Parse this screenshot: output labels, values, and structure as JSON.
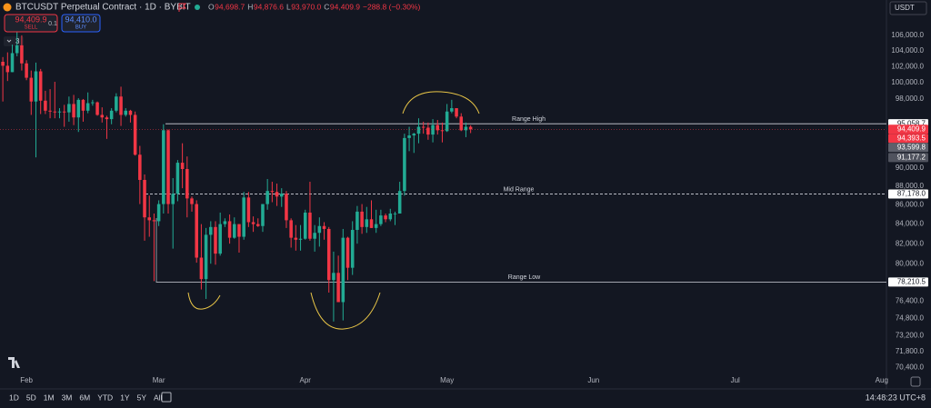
{
  "chart_data": {
    "type": "candlestick",
    "title": "BTCUSDT Perpetual Contract · 1D · BYBIT",
    "ohlc": [
      {
        "key": "O",
        "value": "94,698.7"
      },
      {
        "key": "H",
        "value": "94,876.6"
      },
      {
        "key": "L",
        "value": "93,970.0"
      },
      {
        "key": "C",
        "value": "94,409.9"
      }
    ],
    "change": "−288.8 (−0.30%)",
    "sell": {
      "price": "94,409.9",
      "label": "SELL"
    },
    "spread": "0.1",
    "buy": {
      "price": "94,410.0",
      "label": "BUY"
    },
    "indicators_badge": "3",
    "currency": "USDT",
    "log": true,
    "grid": false,
    "up_color": "#22ab94",
    "down_color": "#f23645",
    "xlim": [
      -0.6,
      187
    ],
    "xticks": [
      {
        "value": 5,
        "label": "Feb"
      },
      {
        "value": 33,
        "label": "Mar"
      },
      {
        "value": 64,
        "label": "Apr"
      },
      {
        "value": 94,
        "label": "May"
      },
      {
        "value": 125,
        "label": "Jun"
      },
      {
        "value": 155,
        "label": "Jul"
      },
      {
        "value": 186,
        "label": "Aug"
      }
    ],
    "ylim": [
      69800,
      107300
    ],
    "yticks": [
      {
        "value": 106000,
        "label": "106,000.0"
      },
      {
        "value": 104000,
        "label": "104,000.0"
      },
      {
        "value": 102000,
        "label": "102,000.0"
      },
      {
        "value": 100000,
        "label": "100,000.0"
      },
      {
        "value": 98000,
        "label": "98,000.0"
      },
      {
        "value": 90000,
        "label": "90,000.0"
      },
      {
        "value": 88000,
        "label": "88,000.0"
      },
      {
        "value": 86000,
        "label": "86,000.0"
      },
      {
        "value": 84000,
        "label": "84,000.0"
      },
      {
        "value": 82000,
        "label": "82,000.0"
      },
      {
        "value": 80000,
        "label": "80,000.0"
      },
      {
        "value": 76400,
        "label": "76,400.0"
      },
      {
        "value": 74800,
        "label": "74,800.0"
      },
      {
        "value": 73200,
        "label": "73,200.0"
      },
      {
        "value": 71800,
        "label": "71,800.0"
      },
      {
        "value": 70400,
        "label": "70,400.0"
      }
    ],
    "levels": [
      {
        "name": "Range High",
        "value": 95058.7,
        "label": "95,058.7",
        "dashed": false
      },
      {
        "name": "Mid Range",
        "value": 87178.0,
        "label": "87,178.0",
        "dashed": true
      },
      {
        "name": "Range Low",
        "value": 78210.5,
        "label": "78,210.5",
        "dashed": false
      }
    ],
    "price_labels": [
      {
        "value": 94409.9,
        "label": "94,409.9",
        "color": "#f23645"
      },
      {
        "value": 94393.5,
        "label": "94,393.5",
        "color": "#f23645"
      },
      {
        "value": 93599.8,
        "label": "93,599.8",
        "color": "#5d606b"
      },
      {
        "value": 91177.2,
        "label": "91,177.2",
        "color": "#50535e"
      }
    ],
    "candles": [
      [
        102600,
        103200,
        97700,
        102100
      ],
      [
        102100,
        103800,
        100200,
        101300
      ],
      [
        101300,
        104800,
        101300,
        103700
      ],
      [
        103700,
        106400,
        103300,
        104700
      ],
      [
        104700,
        106000,
        101500,
        102400
      ],
      [
        102400,
        102800,
        100300,
        100600
      ],
      [
        100600,
        101500,
        96100,
        97700
      ],
      [
        97700,
        102500,
        91200,
        101400
      ],
      [
        101400,
        101700,
        96200,
        97800
      ],
      [
        97800,
        99000,
        96200,
        96600
      ],
      [
        96600,
        99200,
        95700,
        96500
      ],
      [
        96500,
        100100,
        95700,
        96400
      ],
      [
        96400,
        96900,
        95700,
        96500
      ],
      [
        96500,
        97300,
        94700,
        96400
      ],
      [
        96400,
        98300,
        95300,
        97400
      ],
      [
        97400,
        98500,
        94900,
        95800
      ],
      [
        95800,
        98100,
        94100,
        97900
      ],
      [
        97900,
        98000,
        95300,
        96600
      ],
      [
        96600,
        98800,
        96300,
        97500
      ],
      [
        97500,
        97900,
        97200,
        97600
      ],
      [
        97600,
        97700,
        96000,
        96100
      ],
      [
        96100,
        97000,
        95200,
        95800
      ],
      [
        95800,
        96000,
        93300,
        95600
      ],
      [
        95600,
        96900,
        95000,
        96600
      ],
      [
        96600,
        98700,
        96400,
        98300
      ],
      [
        98300,
        99500,
        94800,
        96100
      ],
      [
        96100,
        96900,
        95900,
        96600
      ],
      [
        96600,
        96700,
        95200,
        96100
      ],
      [
        96100,
        96500,
        91400,
        91500
      ],
      [
        91500,
        92500,
        86100,
        88700
      ],
      [
        88700,
        89300,
        82300,
        84700
      ],
      [
        84700,
        87000,
        82700,
        84400
      ],
      [
        84400,
        85100,
        78300,
        84300
      ],
      [
        84300,
        86500,
        83800,
        86100
      ],
      [
        86100,
        95000,
        85100,
        94300
      ],
      [
        94300,
        94400,
        85100,
        86100
      ],
      [
        86100,
        88900,
        81500,
        87200
      ],
      [
        87200,
        90900,
        86400,
        90600
      ],
      [
        90600,
        92800,
        87800,
        89900
      ],
      [
        89900,
        91300,
        84700,
        86700
      ],
      [
        86700,
        86900,
        85300,
        86100
      ],
      [
        86100,
        86500,
        80100,
        80600
      ],
      [
        80600,
        84000,
        77500,
        78500
      ],
      [
        78500,
        83600,
        76600,
        82900
      ],
      [
        82900,
        84300,
        80000,
        83700
      ],
      [
        83700,
        84300,
        79900,
        81000
      ],
      [
        81000,
        85200,
        80800,
        84000
      ],
      [
        84000,
        84600,
        83700,
        84300
      ],
      [
        84300,
        85000,
        82000,
        82600
      ],
      [
        82600,
        84700,
        82500,
        84000
      ],
      [
        84000,
        84000,
        81100,
        82700
      ],
      [
        82700,
        87400,
        82400,
        86800
      ],
      [
        86800,
        87400,
        83700,
        84200
      ],
      [
        84200,
        84800,
        83200,
        84000
      ],
      [
        84000,
        84600,
        83700,
        83800
      ],
      [
        83800,
        86100,
        83200,
        86100
      ],
      [
        86100,
        88800,
        85500,
        87500
      ],
      [
        87500,
        88500,
        86300,
        87400
      ],
      [
        87400,
        88300,
        85900,
        86900
      ],
      [
        86900,
        87800,
        85800,
        87200
      ],
      [
        87200,
        87500,
        83600,
        84400
      ],
      [
        84400,
        84600,
        81600,
        82600
      ],
      [
        82600,
        83900,
        81300,
        82400
      ],
      [
        82400,
        83900,
        81300,
        82500
      ],
      [
        82500,
        85500,
        82400,
        85200
      ],
      [
        85200,
        88500,
        82300,
        82500
      ],
      [
        82500,
        83900,
        81200,
        83100
      ],
      [
        83100,
        84700,
        81700,
        83800
      ],
      [
        83800,
        84200,
        82400,
        83500
      ],
      [
        83500,
        83700,
        77200,
        78400
      ],
      [
        78400,
        81200,
        74500,
        79100
      ],
      [
        79100,
        80800,
        76300,
        76300
      ],
      [
        76300,
        83500,
        74600,
        82600
      ],
      [
        82600,
        82700,
        78400,
        79600
      ],
      [
        79600,
        84300,
        78900,
        83400
      ],
      [
        83400,
        85900,
        82000,
        85300
      ],
      [
        85300,
        86100,
        83000,
        83700
      ],
      [
        83700,
        85800,
        83100,
        84500
      ],
      [
        84500,
        86500,
        83600,
        83600
      ],
      [
        83600,
        85500,
        83100,
        84000
      ],
      [
        84000,
        85500,
        83800,
        84900
      ],
      [
        84900,
        85100,
        84200,
        84500
      ],
      [
        84500,
        85600,
        84300,
        85100
      ],
      [
        85100,
        85300,
        83900,
        85100
      ],
      [
        85100,
        88500,
        85100,
        87500
      ],
      [
        87500,
        93900,
        87000,
        93400
      ],
      [
        93400,
        94700,
        91900,
        93700
      ],
      [
        93700,
        94000,
        91700,
        93900
      ],
      [
        93900,
        95700,
        92800,
        94700
      ],
      [
        94700,
        95300,
        93900,
        94600
      ],
      [
        94600,
        95200,
        93200,
        93800
      ],
      [
        93800,
        95600,
        92900,
        94900
      ],
      [
        94900,
        95500,
        93800,
        94300
      ],
      [
        94300,
        95200,
        92900,
        94200
      ],
      [
        94200,
        97400,
        94100,
        96500
      ],
      [
        96500,
        97900,
        96300,
        96900
      ],
      [
        96900,
        96900,
        95700,
        95900
      ],
      [
        95900,
        96300,
        94200,
        94300
      ],
      [
        94300,
        95200,
        93500,
        94698.7
      ],
      [
        94698.7,
        94876.6,
        93970,
        94409.9
      ]
    ],
    "timeframes": [
      "1D",
      "5D",
      "1M",
      "3M",
      "6M",
      "YTD",
      "1Y",
      "5Y",
      "All"
    ],
    "clock": "14:48:23 UTC+8"
  }
}
